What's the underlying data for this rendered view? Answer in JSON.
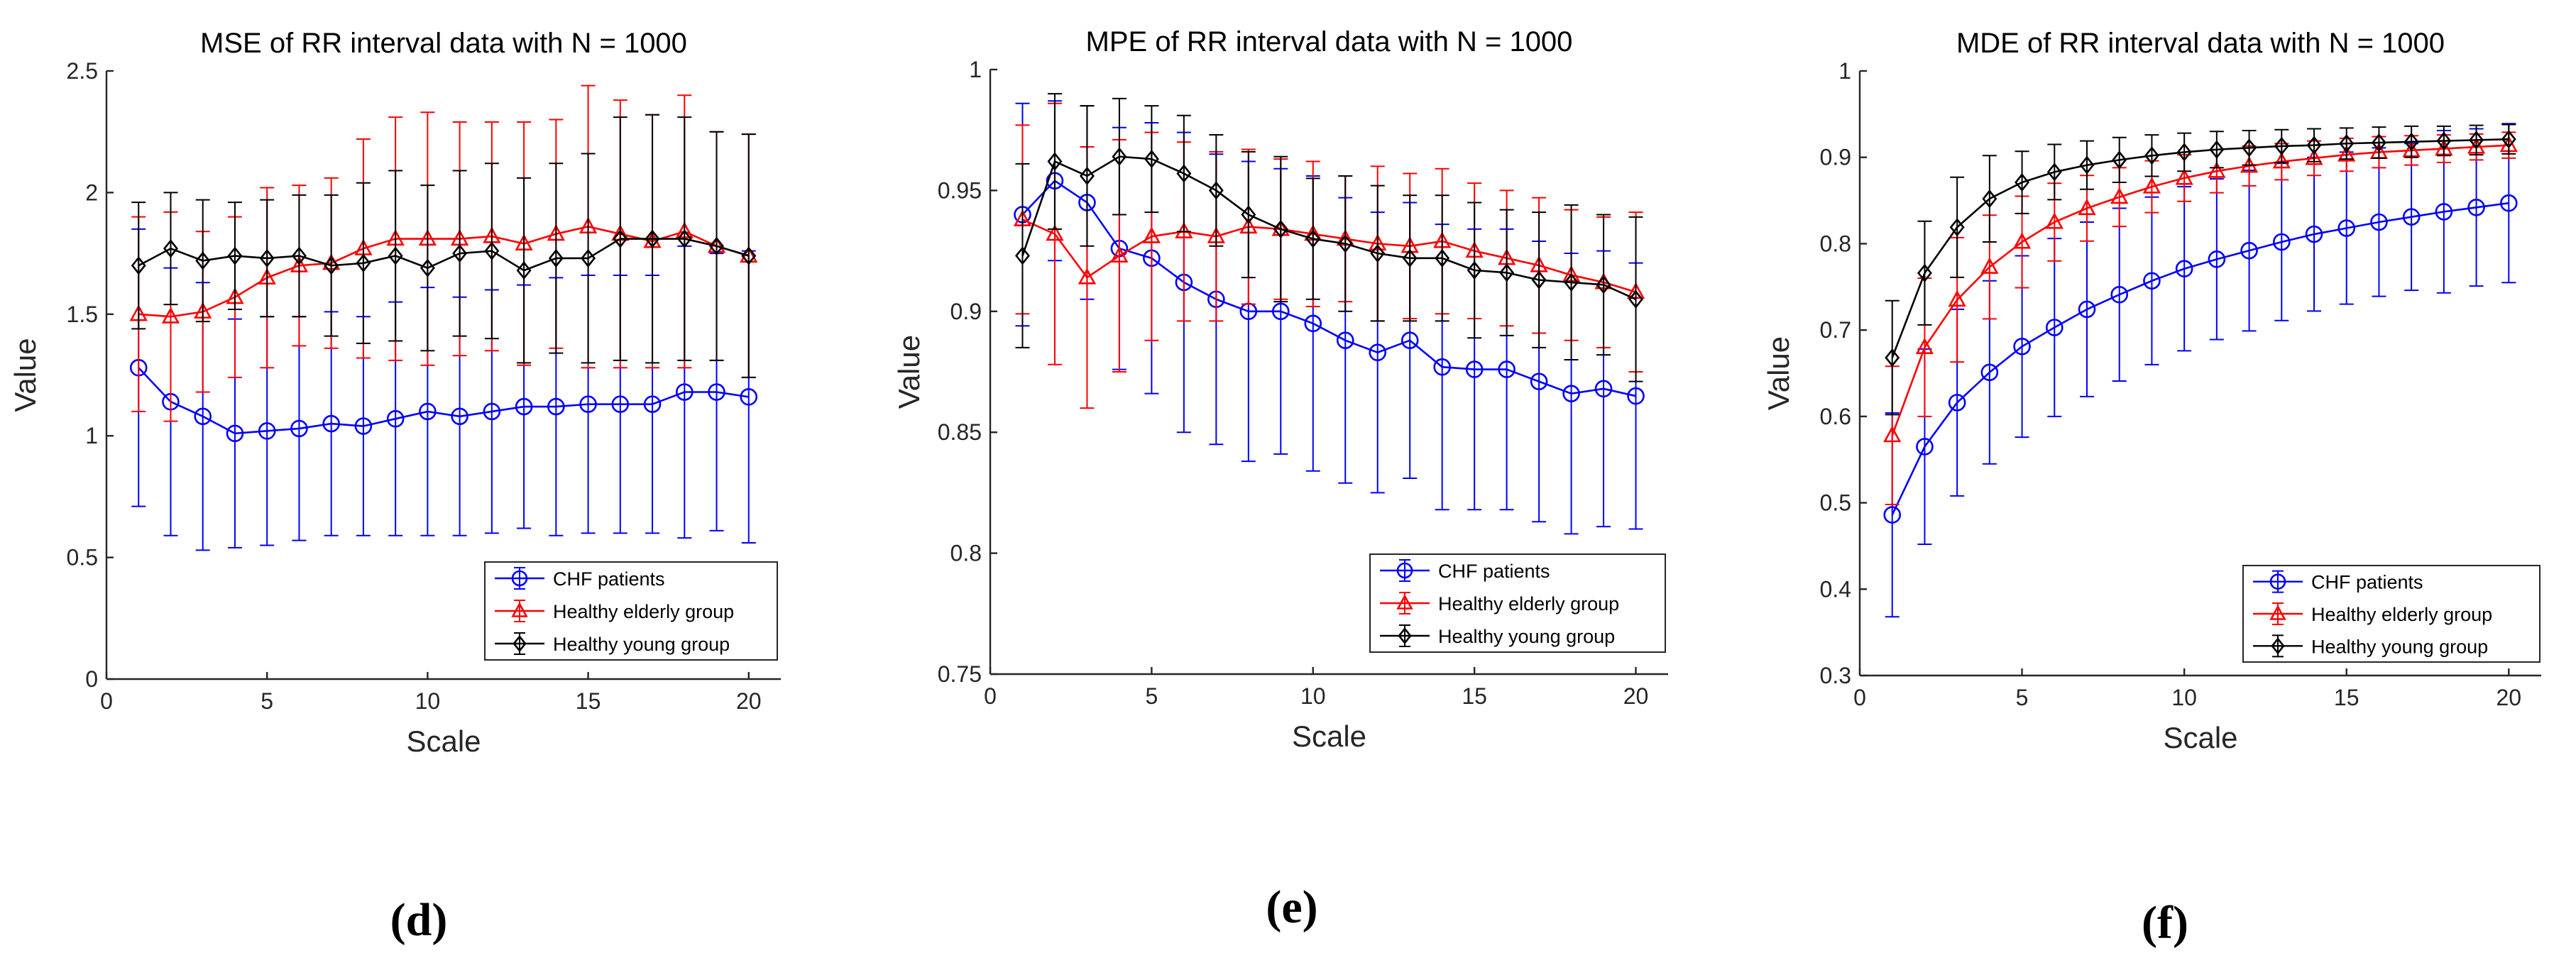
{
  "chart_data": [
    {
      "type": "line",
      "title": "MSE of RR interval data with N = 1000",
      "xlabel": "Scale",
      "ylabel": "Value",
      "xlim": [
        0,
        21
      ],
      "ylim": [
        0,
        2.5
      ],
      "xticks": [
        0,
        5,
        10,
        15,
        20
      ],
      "yticks": [
        0,
        0.5,
        1,
        1.5,
        2,
        2.5
      ],
      "ytick_labels": [
        "0",
        "0.5",
        "1",
        "1.5",
        "2",
        "2.5"
      ],
      "caption": "(d)",
      "legend_position": "bottom-right",
      "x": [
        1,
        2,
        3,
        4,
        5,
        6,
        7,
        8,
        9,
        10,
        11,
        12,
        13,
        14,
        15,
        16,
        17,
        18,
        19,
        20
      ],
      "series": [
        {
          "name": "CHF patients",
          "color": "#0000ff",
          "marker": "circle",
          "values": [
            1.28,
            1.14,
            1.08,
            1.01,
            1.02,
            1.03,
            1.05,
            1.04,
            1.07,
            1.1,
            1.08,
            1.1,
            1.12,
            1.12,
            1.13,
            1.13,
            1.13,
            1.18,
            1.18,
            1.16
          ],
          "err": [
            0.57,
            0.55,
            0.55,
            0.47,
            0.47,
            0.46,
            0.46,
            0.45,
            0.48,
            0.51,
            0.49,
            0.5,
            0.5,
            0.53,
            0.53,
            0.53,
            0.53,
            0.6,
            0.57,
            0.6
          ]
        },
        {
          "name": "Healthy elderly group",
          "color": "#ff0000",
          "marker": "triangle",
          "values": [
            1.5,
            1.49,
            1.51,
            1.57,
            1.65,
            1.7,
            1.71,
            1.77,
            1.81,
            1.81,
            1.81,
            1.82,
            1.79,
            1.83,
            1.86,
            1.83,
            1.8,
            1.84,
            1.78,
            1.74
          ],
          "err": [
            0.4,
            0.43,
            0.33,
            0.33,
            0.37,
            0.33,
            0.35,
            0.45,
            0.5,
            0.52,
            0.48,
            0.47,
            0.5,
            0.47,
            0.58,
            0.55,
            0.52,
            0.56,
            0.47,
            0.5
          ]
        },
        {
          "name": "Healthy young group",
          "color": "#000000",
          "marker": "diamond",
          "values": [
            1.7,
            1.77,
            1.72,
            1.74,
            1.73,
            1.74,
            1.7,
            1.71,
            1.74,
            1.69,
            1.75,
            1.76,
            1.68,
            1.73,
            1.73,
            1.81,
            1.81,
            1.81,
            1.78,
            1.74
          ],
          "err": [
            0.26,
            0.23,
            0.25,
            0.22,
            0.24,
            0.25,
            0.29,
            0.33,
            0.35,
            0.34,
            0.34,
            0.36,
            0.38,
            0.39,
            0.43,
            0.5,
            0.51,
            0.5,
            0.47,
            0.5
          ]
        }
      ]
    },
    {
      "type": "line",
      "title": "MPE of RR interval data with N = 1000",
      "xlabel": "Scale",
      "ylabel": "Value",
      "xlim": [
        0,
        21
      ],
      "ylim": [
        0.75,
        1
      ],
      "xticks": [
        0,
        5,
        10,
        15,
        20
      ],
      "yticks": [
        0.75,
        0.8,
        0.85,
        0.9,
        0.95,
        1
      ],
      "ytick_labels": [
        "0.75",
        "0.8",
        "0.85",
        "0.9",
        "0.95",
        "1"
      ],
      "caption": "(e)",
      "legend_position": "bottom-right",
      "x": [
        1,
        2,
        3,
        4,
        5,
        6,
        7,
        8,
        9,
        10,
        11,
        12,
        13,
        14,
        15,
        16,
        17,
        18,
        19,
        20
      ],
      "series": [
        {
          "name": "CHF patients",
          "color": "#0000ff",
          "marker": "circle",
          "values": [
            0.94,
            0.954,
            0.945,
            0.926,
            0.922,
            0.912,
            0.905,
            0.9,
            0.9,
            0.895,
            0.888,
            0.883,
            0.888,
            0.877,
            0.876,
            0.876,
            0.871,
            0.866,
            0.868,
            0.865
          ],
          "err": [
            0.046,
            0.033,
            0.04,
            0.05,
            0.056,
            0.062,
            0.06,
            0.062,
            0.059,
            0.061,
            0.059,
            0.058,
            0.057,
            0.059,
            0.058,
            0.058,
            0.058,
            0.058,
            0.057,
            0.055
          ]
        },
        {
          "name": "Healthy elderly group",
          "color": "#ff0000",
          "marker": "triangle",
          "values": [
            0.938,
            0.932,
            0.914,
            0.923,
            0.931,
            0.933,
            0.931,
            0.935,
            0.934,
            0.932,
            0.93,
            0.928,
            0.927,
            0.929,
            0.925,
            0.922,
            0.919,
            0.915,
            0.912,
            0.908
          ],
          "err": [
            0.039,
            0.054,
            0.054,
            0.048,
            0.043,
            0.037,
            0.035,
            0.032,
            0.029,
            0.03,
            0.026,
            0.032,
            0.03,
            0.03,
            0.028,
            0.028,
            0.028,
            0.027,
            0.027,
            0.033
          ]
        },
        {
          "name": "Healthy young group",
          "color": "#000000",
          "marker": "diamond",
          "values": [
            0.923,
            0.962,
            0.956,
            0.964,
            0.963,
            0.957,
            0.95,
            0.94,
            0.934,
            0.93,
            0.928,
            0.924,
            0.922,
            0.922,
            0.917,
            0.916,
            0.913,
            0.912,
            0.911,
            0.905
          ],
          "err": [
            0.038,
            0.028,
            0.029,
            0.024,
            0.022,
            0.024,
            0.023,
            0.026,
            0.03,
            0.025,
            0.028,
            0.028,
            0.026,
            0.026,
            0.028,
            0.026,
            0.028,
            0.032,
            0.029,
            0.034
          ]
        }
      ]
    },
    {
      "type": "line",
      "title": "MDE of RR interval data with N = 1000",
      "xlabel": "Scale",
      "ylabel": "Value",
      "xlim": [
        0,
        21
      ],
      "ylim": [
        0.3,
        1
      ],
      "xticks": [
        0,
        5,
        10,
        15,
        20
      ],
      "yticks": [
        0.3,
        0.4,
        0.5,
        0.6,
        0.7,
        0.8,
        0.9,
        1
      ],
      "ytick_labels": [
        "0.3",
        "0.4",
        "0.5",
        "0.6",
        "0.7",
        "0.8",
        "0.9",
        "1"
      ],
      "caption": "(f)",
      "legend_position": "bottom-right",
      "x": [
        1,
        2,
        3,
        4,
        5,
        6,
        7,
        8,
        9,
        10,
        11,
        12,
        13,
        14,
        15,
        16,
        17,
        18,
        19,
        20
      ],
      "series": [
        {
          "name": "CHF patients",
          "color": "#0000ff",
          "marker": "circle",
          "values": [
            0.486,
            0.565,
            0.616,
            0.651,
            0.681,
            0.703,
            0.724,
            0.741,
            0.757,
            0.771,
            0.782,
            0.792,
            0.802,
            0.811,
            0.818,
            0.825,
            0.831,
            0.837,
            0.842,
            0.847
          ],
          "err": [
            0.118,
            0.113,
            0.108,
            0.106,
            0.105,
            0.103,
            0.101,
            0.1,
            0.097,
            0.095,
            0.093,
            0.093,
            0.091,
            0.089,
            0.088,
            0.086,
            0.085,
            0.094,
            0.091,
            0.092
          ]
        },
        {
          "name": "Healthy elderly group",
          "color": "#ff0000",
          "marker": "triangle",
          "values": [
            0.578,
            0.68,
            0.735,
            0.773,
            0.802,
            0.825,
            0.841,
            0.854,
            0.866,
            0.876,
            0.884,
            0.89,
            0.895,
            0.899,
            0.903,
            0.906,
            0.908,
            0.91,
            0.912,
            0.914
          ],
          "err": [
            0.08,
            0.08,
            0.072,
            0.06,
            0.053,
            0.045,
            0.038,
            0.034,
            0.03,
            0.027,
            0.025,
            0.023,
            0.021,
            0.02,
            0.019,
            0.018,
            0.017,
            0.016,
            0.015,
            0.015
          ]
        },
        {
          "name": "Healthy young group",
          "color": "#000000",
          "marker": "diamond",
          "values": [
            0.668,
            0.766,
            0.819,
            0.852,
            0.871,
            0.883,
            0.891,
            0.897,
            0.902,
            0.906,
            0.909,
            0.911,
            0.913,
            0.914,
            0.916,
            0.917,
            0.918,
            0.919,
            0.92,
            0.921
          ],
          "err": [
            0.066,
            0.06,
            0.058,
            0.05,
            0.036,
            0.032,
            0.028,
            0.026,
            0.024,
            0.022,
            0.021,
            0.02,
            0.019,
            0.019,
            0.018,
            0.018,
            0.018,
            0.017,
            0.017,
            0.017
          ]
        }
      ]
    }
  ]
}
